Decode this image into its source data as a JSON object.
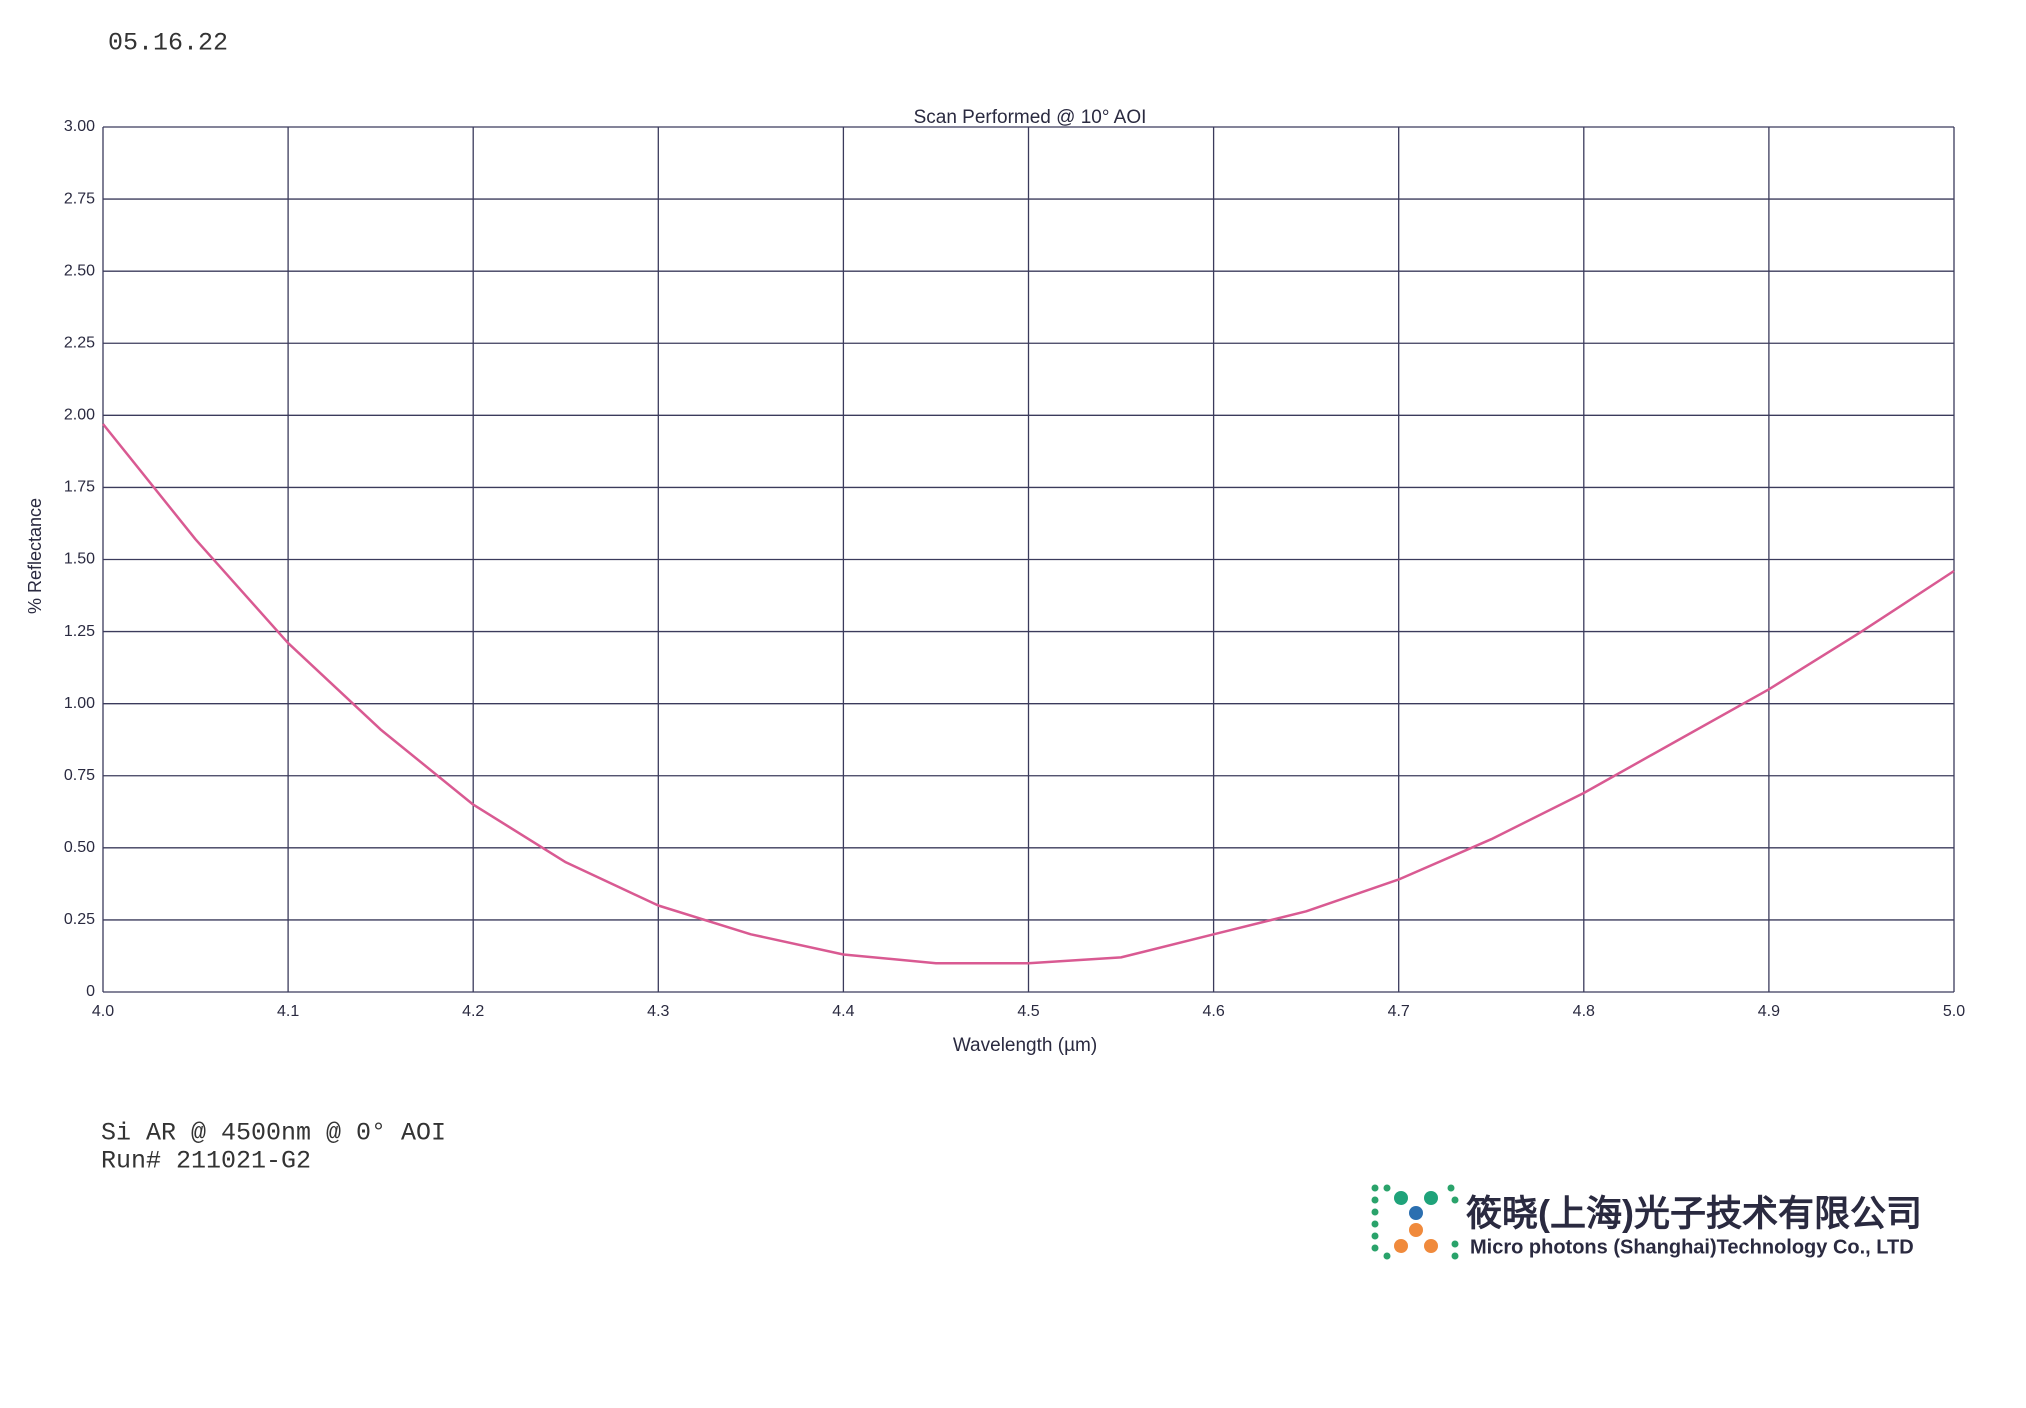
{
  "header": {
    "date": "05.16.22"
  },
  "chart_data": {
    "type": "line",
    "title": "Scan Performed @ 10° AOI",
    "x_label": "Wavelength (µm)",
    "y_label": "% Reflectance",
    "x": [
      4.0,
      4.05,
      4.1,
      4.15,
      4.2,
      4.25,
      4.3,
      4.35,
      4.4,
      4.45,
      4.5,
      4.55,
      4.6,
      4.65,
      4.7,
      4.75,
      4.8,
      4.85,
      4.9,
      4.95,
      5.0
    ],
    "series": [
      {
        "name": "Reflectance",
        "color": "#d95a92",
        "values": [
          1.97,
          1.57,
          1.21,
          0.91,
          0.65,
          0.45,
          0.3,
          0.2,
          0.13,
          0.1,
          0.1,
          0.12,
          0.2,
          0.28,
          0.39,
          0.53,
          0.69,
          0.87,
          1.05,
          1.25,
          1.46
        ]
      }
    ],
    "xlim": [
      4.0,
      5.0
    ],
    "xticks": [
      {
        "value": 4,
        "label": "4.0"
      },
      4.1,
      4.2,
      4.3,
      4.4,
      4.5,
      4.6,
      4.7,
      4.8,
      4.9,
      {
        "value": 5,
        "label": "5.0"
      }
    ],
    "ylim": [
      0,
      3
    ],
    "yticks": [
      0,
      {
        "value": 0.25,
        "label": "0.25"
      },
      {
        "value": 0.5,
        "label": "0.50"
      },
      {
        "value": 0.75,
        "label": "0.75"
      },
      {
        "value": 1,
        "label": "1.00"
      },
      {
        "value": 1.25,
        "label": "1.25"
      },
      {
        "value": 1.5,
        "label": "1.50"
      },
      {
        "value": 1.75,
        "label": "1.75"
      },
      {
        "value": 2,
        "label": "2.00"
      },
      {
        "value": 2.25,
        "label": "2.25"
      },
      {
        "value": 2.5,
        "label": "2.50"
      },
      {
        "value": 2.75,
        "label": "2.75"
      },
      {
        "value": 3,
        "label": "3.00"
      }
    ],
    "grid": true
  },
  "notes": [
    "Si AR @ 4500nm @ 0° AOI",
    "Run# 211021-G2"
  ],
  "logo": {
    "name_cn": "筱晓(上海)光子技术有限公司",
    "name_en": "Micro photons (Shanghai)Technology Co., LTD"
  }
}
